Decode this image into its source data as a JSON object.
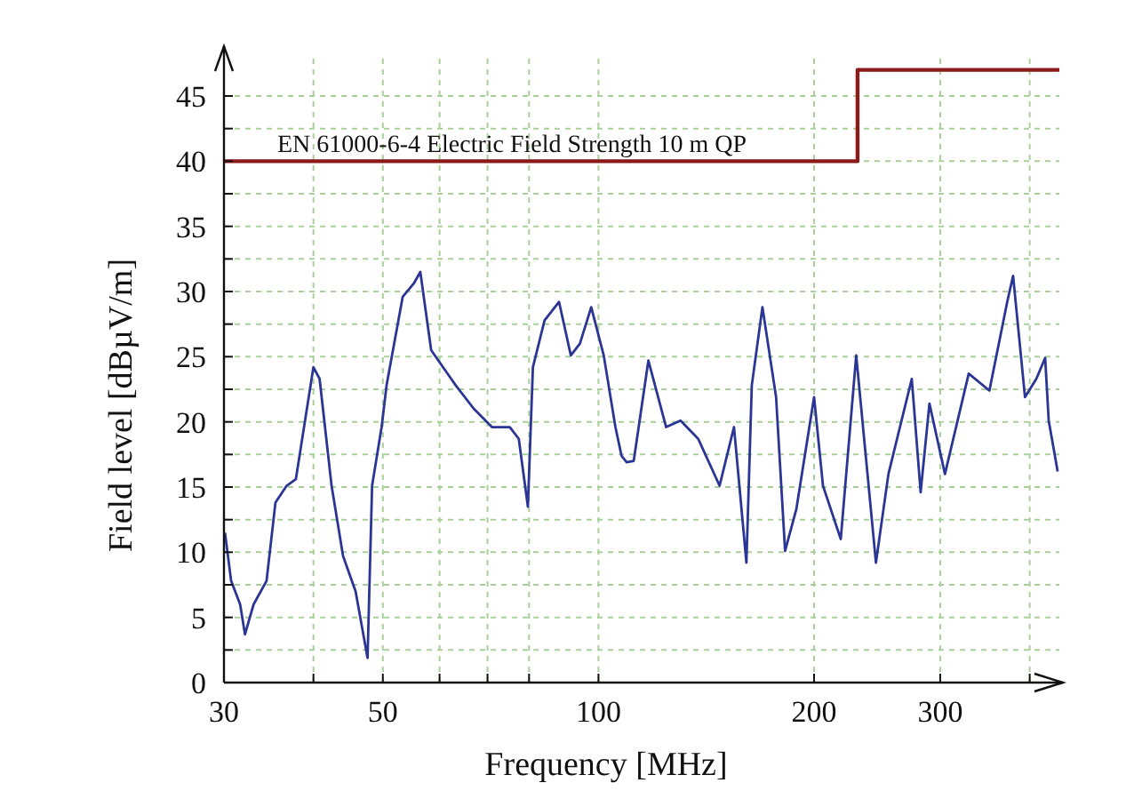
{
  "chart_data": {
    "type": "line",
    "xlabel": "Frequency [MHz]",
    "ylabel": "Field level [dBµV/m]",
    "log": "x",
    "xlim": [
      30,
      440
    ],
    "ylim": [
      0,
      48
    ],
    "xticks": [
      30,
      {
        "value": 40,
        "label": null
      },
      50,
      {
        "value": 60,
        "label": null
      },
      {
        "value": 70,
        "label": null
      },
      {
        "value": 80,
        "label": null
      },
      100,
      200,
      300,
      {
        "value": 400,
        "label": null
      }
    ],
    "yticks": [
      0,
      {
        "value": 2.5,
        "label": null
      },
      5,
      {
        "value": 7.5,
        "label": null
      },
      10,
      {
        "value": 12.5,
        "label": null
      },
      15,
      {
        "value": 17.5,
        "label": null
      },
      20,
      {
        "value": 22.5,
        "label": null
      },
      25,
      {
        "value": 27.5,
        "label": null
      },
      30,
      {
        "value": 32.5,
        "label": null
      },
      35,
      {
        "value": 37.5,
        "label": null
      },
      40,
      {
        "value": 42.5,
        "label": null
      },
      45
    ],
    "grid": true,
    "series": [
      {
        "color": "#2b3594",
        "x": [
          30.1,
          30.7,
          31.6,
          32.1,
          33.0,
          34.4,
          35.4,
          36.7,
          37.8,
          40.0,
          40.8,
          42.4,
          44.0,
          45.8,
          47.6,
          48.3,
          49.8,
          50.6,
          53.3,
          55.2,
          56.4,
          58.4,
          63.2,
          67.0,
          71.0,
          75.2,
          77.4,
          79.7,
          81.0,
          84.1,
          88.1,
          91.5,
          94.2,
          97.7,
          101.7,
          105.6,
          107.7,
          109.5,
          112.0,
          117.4,
          124.3,
          130.2,
          137.8,
          147.6,
          154.6,
          160.9,
          163.7,
          169.4,
          177.0,
          182.2,
          188.9,
          200.0,
          205.8,
          217.9,
          229,
          244,
          254,
          273.8,
          281.7,
          289.8,
          304.6,
          328.8,
          351.4,
          372.1,
          379.2,
          394.0,
          408.6,
          420.4,
          425.2,
          437.6
        ],
        "values": [
          11.5,
          7.8,
          6.0,
          3.7,
          6.0,
          7.8,
          13.8,
          15.1,
          15.6,
          24.2,
          23.3,
          15.1,
          9.7,
          7.0,
          1.9,
          15.1,
          19.6,
          22.8,
          29.6,
          30.6,
          31.5,
          25.5,
          22.8,
          21.0,
          19.6,
          19.6,
          18.7,
          13.5,
          24.2,
          27.8,
          29.2,
          25.1,
          26.0,
          28.8,
          25.1,
          19.6,
          17.4,
          16.9,
          17.0,
          24.7,
          19.6,
          20.1,
          18.7,
          15.1,
          19.6,
          9.2,
          22.8,
          28.8,
          21.9,
          10.1,
          13.3,
          21.9,
          15.1,
          11.0,
          25.1,
          9.2,
          16.0,
          23.3,
          14.6,
          21.4,
          16.0,
          23.7,
          22.4,
          29.2,
          31.2,
          21.9,
          23.3,
          24.9,
          20.1,
          16.2
        ]
      },
      {
        "type": "step",
        "name": "EN 61000-6-4 Electric Field Strength 10 m QP",
        "color": "#8b1a1a",
        "x": [
          30,
          230,
          230,
          440
        ],
        "values": [
          40,
          40,
          47,
          47
        ]
      }
    ]
  }
}
